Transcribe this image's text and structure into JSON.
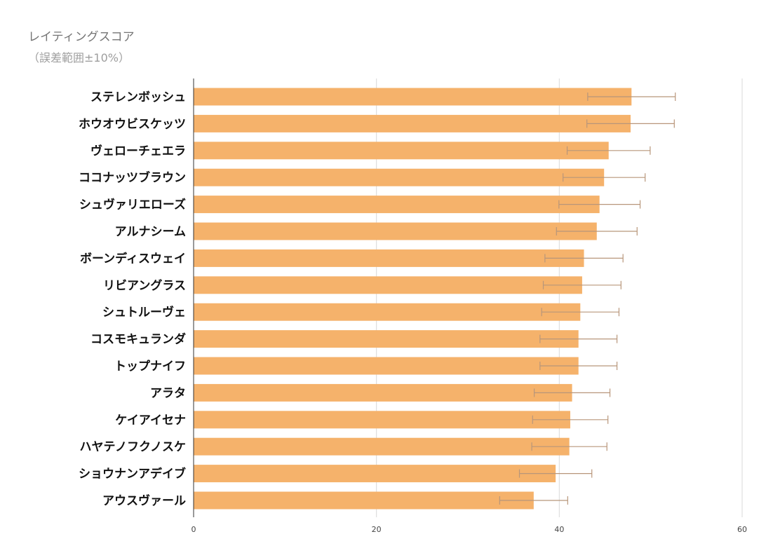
{
  "chart_data": {
    "type": "bar",
    "orientation": "horizontal",
    "title": "レイティングスコア",
    "subtitle": "（誤差範囲±10%）",
    "xlabel": "",
    "ylabel": "",
    "xlim": [
      0,
      60
    ],
    "x_ticks": [
      0,
      20,
      40,
      60
    ],
    "grid": true,
    "legend": "none",
    "error_bars": "±10%",
    "bar_color": "#f5b26b",
    "error_bar_color": "#b8967a",
    "categories": [
      "ステレンボッシュ",
      "ホウオウビスケッツ",
      "ヴェローチェエラ",
      "ココナッツブラウン",
      "シュヴァリエローズ",
      "アルナシーム",
      "ボーンディスウェイ",
      "リビアングラス",
      "シュトルーヴェ",
      "コスモキュランダ",
      "トップナイフ",
      "アラタ",
      "ケイアイセナ",
      "ハヤテノフクノスケ",
      "ショウナンアデイブ",
      "アウスヴァール"
    ],
    "values": [
      47.9,
      47.8,
      45.4,
      44.9,
      44.4,
      44.1,
      42.7,
      42.5,
      42.3,
      42.1,
      42.1,
      41.4,
      41.2,
      41.1,
      39.6,
      37.2
    ]
  }
}
